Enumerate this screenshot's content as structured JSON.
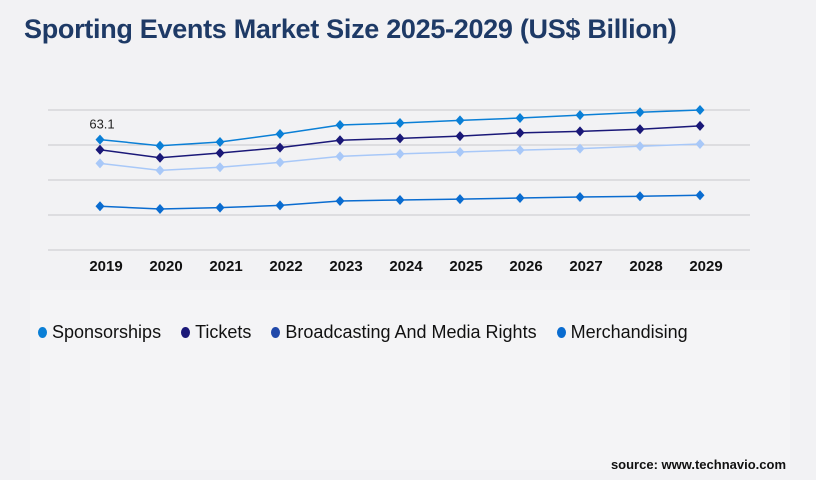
{
  "title": "Sporting Events Market Size 2025-2029 (US$ Billion)",
  "source": "source: www.technavio.com",
  "chart_data": {
    "type": "line",
    "title": "Sporting Events Market Size 2025-2029 (US$ Billion)",
    "categories": [
      "2019",
      "2020",
      "2021",
      "2022",
      "2023",
      "2024",
      "2025",
      "2026",
      "2027",
      "2028",
      "2029"
    ],
    "ylim": [
      0,
      80
    ],
    "grid": true,
    "legend_position": "bottom",
    "annotations": [
      {
        "series": "Sponsorships",
        "category": "2019",
        "label": "63.1"
      }
    ],
    "series": [
      {
        "name": "Sponsorships",
        "color": "#0a7fd6",
        "legend_color": "#0a7fd6",
        "values": [
          63.1,
          59.6,
          61.7,
          66.3,
          71.4,
          72.6,
          74.1,
          75.4,
          77.1,
          78.7,
          80.0
        ]
      },
      {
        "name": "Tickets",
        "color": "#1a1878",
        "legend_color": "#1a1878",
        "values": [
          57.3,
          52.7,
          55.4,
          58.5,
          62.7,
          63.8,
          65.1,
          66.9,
          67.8,
          69.0,
          70.9
        ]
      },
      {
        "name": "Broadcasting And Media Rights",
        "color": "#a8c8f8",
        "legend_color": "#2048aa",
        "values": [
          49.5,
          45.5,
          47.3,
          50.1,
          53.5,
          54.9,
          56.0,
          57.1,
          57.9,
          59.3,
          60.6
        ]
      },
      {
        "name": "Merchandising",
        "color": "#0a6cd0",
        "legend_color": "#0a6cd0",
        "values": [
          25.0,
          23.4,
          24.2,
          25.5,
          28.0,
          28.6,
          29.1,
          29.7,
          30.3,
          30.7,
          31.3
        ]
      }
    ]
  }
}
